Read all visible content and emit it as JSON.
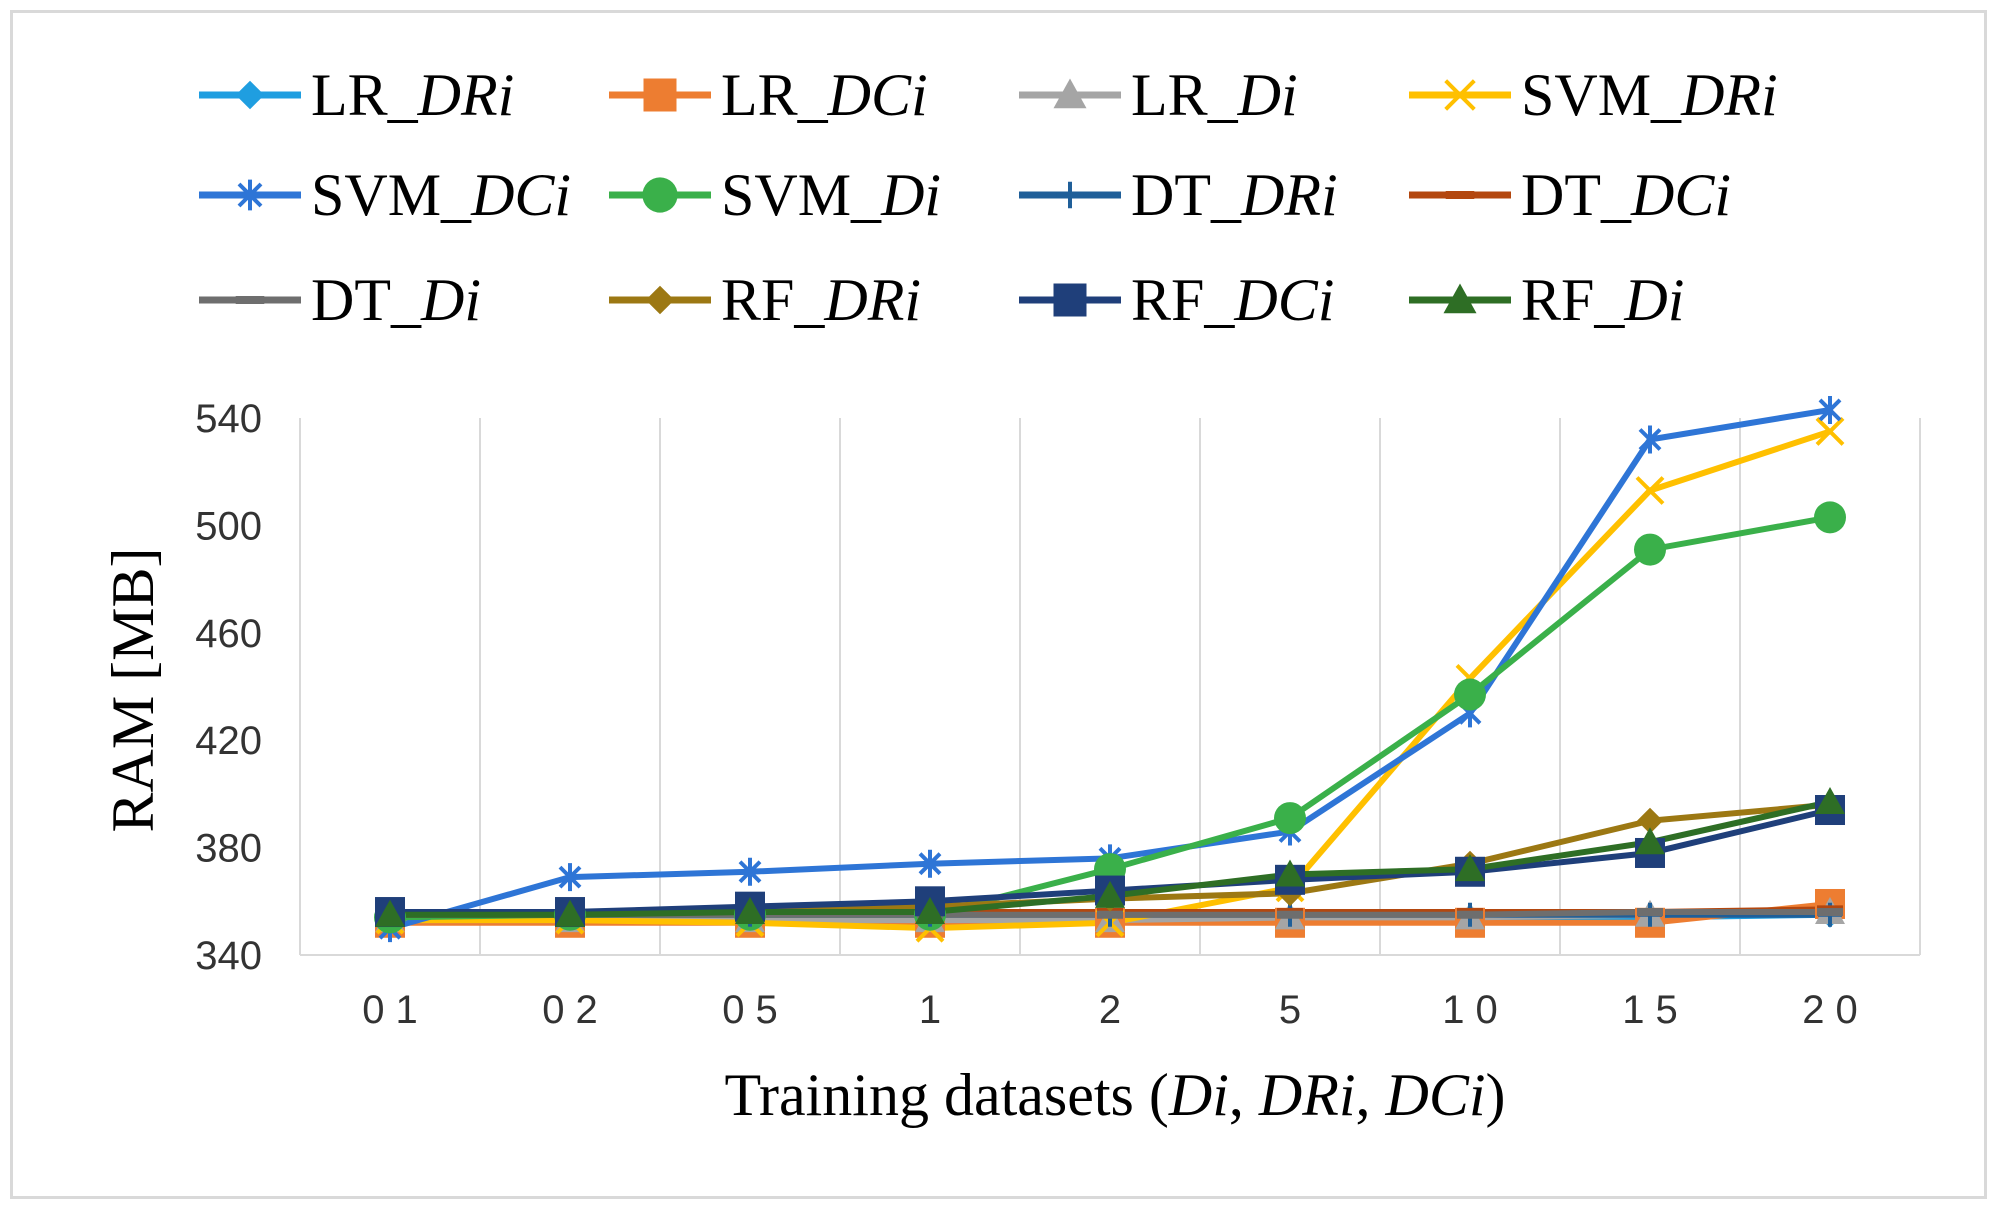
{
  "chart_data": {
    "type": "line",
    "title": "",
    "xlabel": "Training datasets (Di, DRi, DCi)",
    "ylabel": "RAM [MB]",
    "categories": [
      "0 1",
      "0 2",
      "0 5",
      "1",
      "2",
      "5",
      "1 0",
      "1 5",
      "2 0"
    ],
    "ylim": [
      340,
      540
    ],
    "yticks": [
      340,
      380,
      420,
      460,
      500,
      540
    ],
    "grid": "vertical",
    "legend_position": "top",
    "series": [
      {
        "name": "LR_DRi",
        "prefix": "LR_",
        "suffix": "DRi",
        "color": "#1f9ee0",
        "marker": "diamond",
        "values": [
          354,
          354,
          354,
          354,
          354,
          354,
          354,
          354,
          355
        ]
      },
      {
        "name": "LR_DCi",
        "prefix": "LR_",
        "suffix": "DCi",
        "color": "#ed7d31",
        "marker": "square",
        "values": [
          352,
          352,
          352,
          352,
          352,
          352,
          352,
          352,
          359
        ]
      },
      {
        "name": "LR_Di",
        "prefix": "LR_",
        "suffix": "Di",
        "color": "#a5a5a5",
        "marker": "triangle",
        "values": [
          353,
          353,
          353,
          353,
          353,
          354,
          354,
          355,
          356
        ]
      },
      {
        "name": "SVM_DRi",
        "prefix": "SVM_",
        "suffix": "DRi",
        "color": "#ffc000",
        "marker": "x",
        "values": [
          353,
          353,
          352,
          350,
          352,
          365,
          443,
          513,
          535
        ]
      },
      {
        "name": "SVM_DCi",
        "prefix": "SVM_",
        "suffix": "DCi",
        "color": "#2e75d6",
        "marker": "star",
        "values": [
          350,
          369,
          371,
          374,
          376,
          386,
          430,
          532,
          543
        ]
      },
      {
        "name": "SVM_Di",
        "prefix": "SVM_",
        "suffix": "Di",
        "color": "#3ab04a",
        "marker": "circle",
        "values": [
          354,
          355,
          355,
          355,
          372,
          391,
          437,
          491,
          503
        ]
      },
      {
        "name": "DT_DRi",
        "prefix": "DT_",
        "suffix": "DRi",
        "color": "#1f5f99",
        "marker": "plus",
        "values": [
          355,
          355,
          355,
          355,
          355,
          355,
          355,
          355,
          355
        ]
      },
      {
        "name": "DT_DCi",
        "prefix": "DT_",
        "suffix": "DCi",
        "color": "#b3470f",
        "marker": "dash",
        "values": [
          355,
          355,
          356,
          356,
          356,
          356,
          356,
          356,
          357
        ]
      },
      {
        "name": "DT_Di",
        "prefix": "DT_",
        "suffix": "Di",
        "color": "#6e6e6e",
        "marker": "dash",
        "values": [
          355,
          355,
          355,
          355,
          355,
          355,
          355,
          356,
          356
        ]
      },
      {
        "name": "RF_DRi",
        "prefix": "RF_",
        "suffix": "DRi",
        "color": "#9c7813",
        "marker": "diamond",
        "values": [
          356,
          356,
          357,
          358,
          361,
          363,
          374,
          390,
          396
        ]
      },
      {
        "name": "RF_DCi",
        "prefix": "RF_",
        "suffix": "DCi",
        "color": "#1f3f7a",
        "marker": "square",
        "values": [
          356,
          356,
          358,
          360,
          364,
          368,
          371,
          378,
          394
        ]
      },
      {
        "name": "RF_Di",
        "prefix": "RF_",
        "suffix": "Di",
        "color": "#2e6e25",
        "marker": "triangle",
        "values": [
          355,
          355,
          356,
          356,
          362,
          370,
          372,
          382,
          397
        ]
      }
    ]
  }
}
